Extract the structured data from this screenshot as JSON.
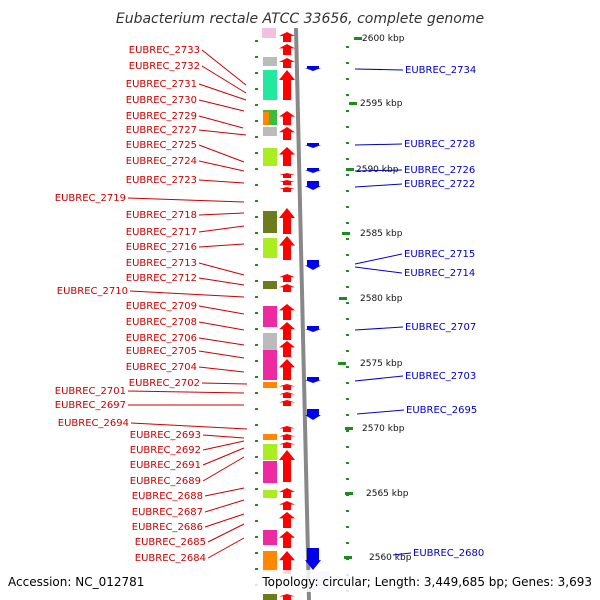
{
  "title": "Eubacterium rectale ATCC 33656, complete genome",
  "accession_label": "Accession: NC_012781",
  "topology_label": "Topology: circular; Length: 3,449,685 bp; Genes: 3,693",
  "ticks": [
    "2600 kbp",
    "2595 kbp",
    "2590 kbp",
    "2585 kbp",
    "2580 kbp",
    "2575 kbp",
    "2570 kbp",
    "2565 kbp",
    "2560 kbp"
  ],
  "left_labels": [
    "EUBREC_2733",
    "EUBREC_2732",
    "EUBREC_2731",
    "EUBREC_2730",
    "EUBREC_2729",
    "EUBREC_2727",
    "EUBREC_2725",
    "EUBREC_2724",
    "EUBREC_2723",
    "EUBREC_2719",
    "EUBREC_2718",
    "EUBREC_2717",
    "EUBREC_2716",
    "EUBREC_2713",
    "EUBREC_2712",
    "EUBREC_2710",
    "EUBREC_2709",
    "EUBREC_2708",
    "EUBREC_2706",
    "EUBREC_2705",
    "EUBREC_2704",
    "EUBREC_2702",
    "EUBREC_2701",
    "EUBREC_2697",
    "EUBREC_2694",
    "EUBREC_2693",
    "EUBREC_2692",
    "EUBREC_2691",
    "EUBREC_2689",
    "EUBREC_2688",
    "EUBREC_2687",
    "EUBREC_2686",
    "EUBREC_2685",
    "EUBREC_2684"
  ],
  "right_labels": [
    "EUBREC_2734",
    "EUBREC_2728",
    "EUBREC_2726",
    "EUBREC_2722",
    "EUBREC_2715",
    "EUBREC_2714",
    "EUBREC_2707",
    "EUBREC_2703",
    "EUBREC_2695",
    "EUBREC_2680"
  ],
  "colors": {
    "forward_gene": "#ff0000",
    "reverse_gene": "#0000ee",
    "left_label": "#cc0000",
    "right_label": "#0000cc",
    "backbone": "#888888",
    "dash": "#228822"
  }
}
